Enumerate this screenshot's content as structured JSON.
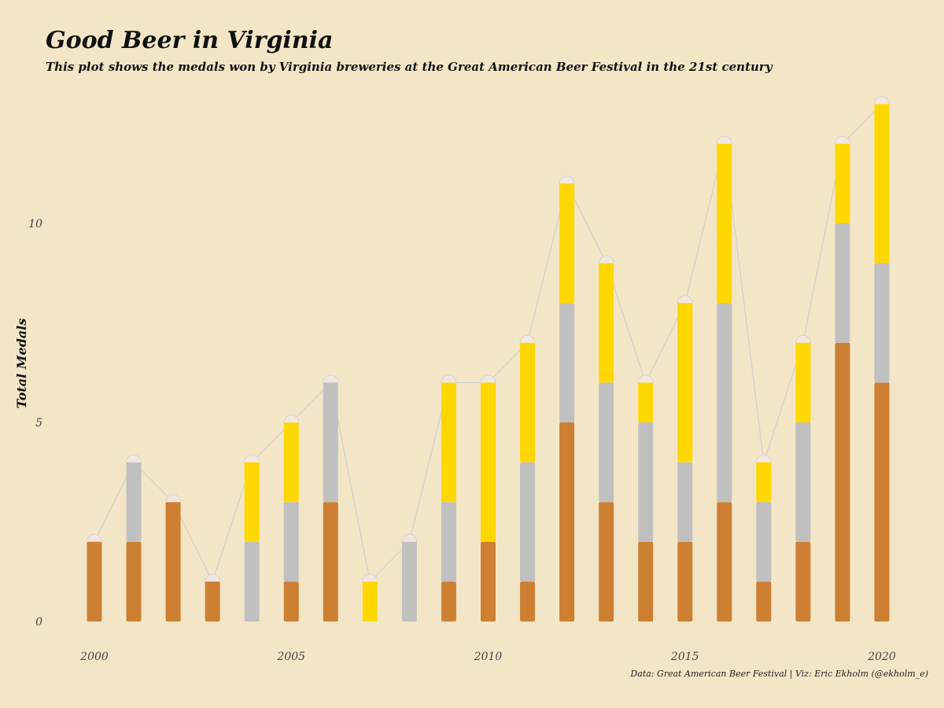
{
  "chart_data": {
    "type": "bar",
    "stacked": true,
    "title": "Good Beer in Virginia",
    "subtitle": "This plot shows the medals won by Virginia breweries at the Great American Beer Festival in the 21st century",
    "ylabel": "Total Medals",
    "xlabel": "",
    "caption": "Data: Great American Beer Festival | Viz: Eric Ekholm (@ekholm_e)",
    "x": [
      2000,
      2001,
      2002,
      2003,
      2004,
      2005,
      2006,
      2007,
      2008,
      2009,
      2010,
      2011,
      2012,
      2013,
      2014,
      2015,
      2016,
      2017,
      2018,
      2019,
      2020
    ],
    "x_ticks": [
      2000,
      2005,
      2010,
      2015,
      2020
    ],
    "y_ticks": [
      0,
      5,
      10
    ],
    "ylim": [
      0,
      13
    ],
    "grid": false,
    "series": [
      {
        "key": "bronze",
        "color": "#cd7f32",
        "values": [
          2,
          2,
          3,
          1,
          0,
          1,
          3,
          0,
          0,
          1,
          2,
          1,
          5,
          3,
          2,
          2,
          3,
          1,
          2,
          7,
          6
        ]
      },
      {
        "key": "silver",
        "color": "#c0c0c0",
        "values": [
          0,
          2,
          0,
          0,
          2,
          2,
          3,
          0,
          2,
          2,
          0,
          3,
          3,
          3,
          3,
          2,
          5,
          2,
          3,
          3,
          3
        ]
      },
      {
        "key": "gold",
        "color": "#ffd700",
        "values": [
          0,
          0,
          0,
          0,
          2,
          2,
          0,
          1,
          0,
          3,
          4,
          3,
          3,
          3,
          1,
          4,
          4,
          1,
          2,
          2,
          4
        ]
      }
    ],
    "totals": [
      2,
      4,
      3,
      1,
      4,
      5,
      6,
      1,
      2,
      6,
      6,
      7,
      11,
      9,
      6,
      8,
      12,
      4,
      7,
      12,
      13
    ],
    "trend_line_color": "#d0d0d0",
    "foam_color": "#f1e7e0"
  }
}
